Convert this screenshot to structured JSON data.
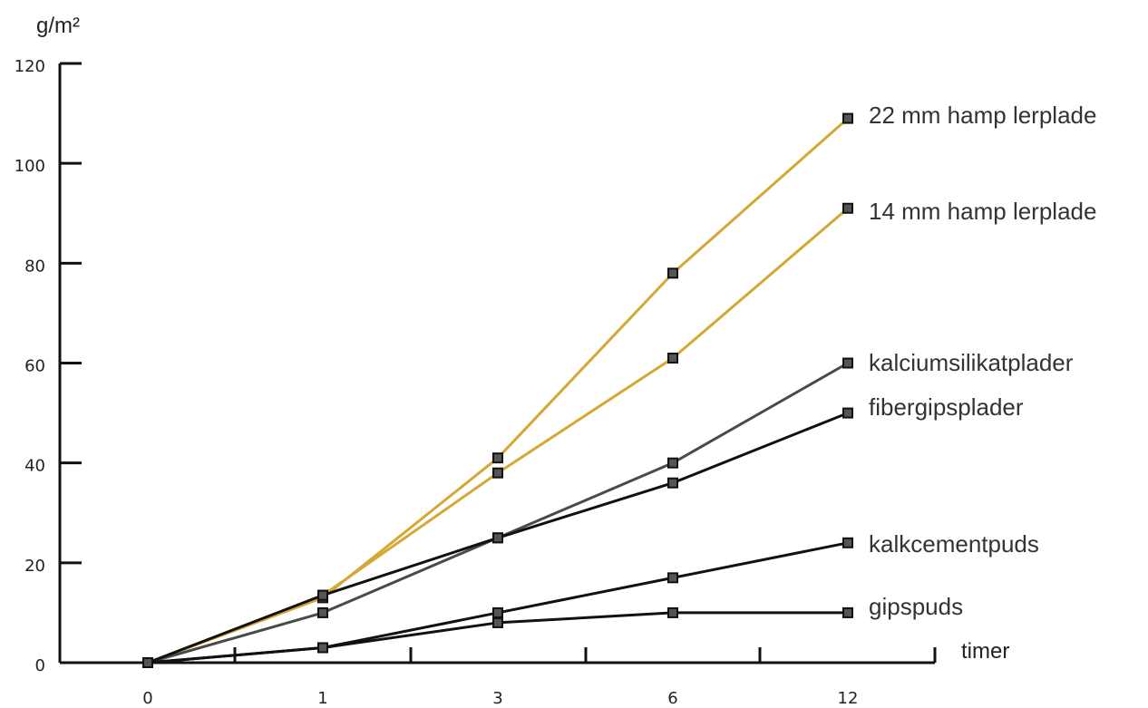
{
  "chart_data": {
    "type": "line",
    "title": "",
    "ylabel": "g/m²",
    "xlabel": "timer",
    "ylim": [
      0,
      120
    ],
    "yticks": [
      0,
      20,
      40,
      60,
      80,
      100,
      120
    ],
    "categories": [
      "0",
      "1",
      "3",
      "6",
      "12"
    ],
    "grid": false,
    "legend": "inline labels at line ends",
    "series": [
      {
        "name": "22 mm hamp lerplade",
        "color": "#d4a832",
        "values": [
          0,
          13,
          41,
          78,
          109
        ]
      },
      {
        "name": "14 mm hamp lerplade",
        "color": "#d4a832",
        "values": [
          0,
          13.5,
          38,
          61,
          91
        ]
      },
      {
        "name": "kalciumsilikatplader",
        "color": "#4a4a4a",
        "values": [
          0,
          10,
          25,
          40,
          60
        ]
      },
      {
        "name": "fibergipsplader",
        "color": "#111111",
        "values": [
          0,
          13.5,
          25,
          36,
          50
        ]
      },
      {
        "name": "kalkcementpuds",
        "color": "#111111",
        "values": [
          0,
          3,
          10,
          17,
          24
        ]
      },
      {
        "name": "gipspuds",
        "color": "#111111",
        "values": [
          0,
          3,
          8,
          10,
          10
        ]
      }
    ],
    "marker_color": "#111111"
  }
}
